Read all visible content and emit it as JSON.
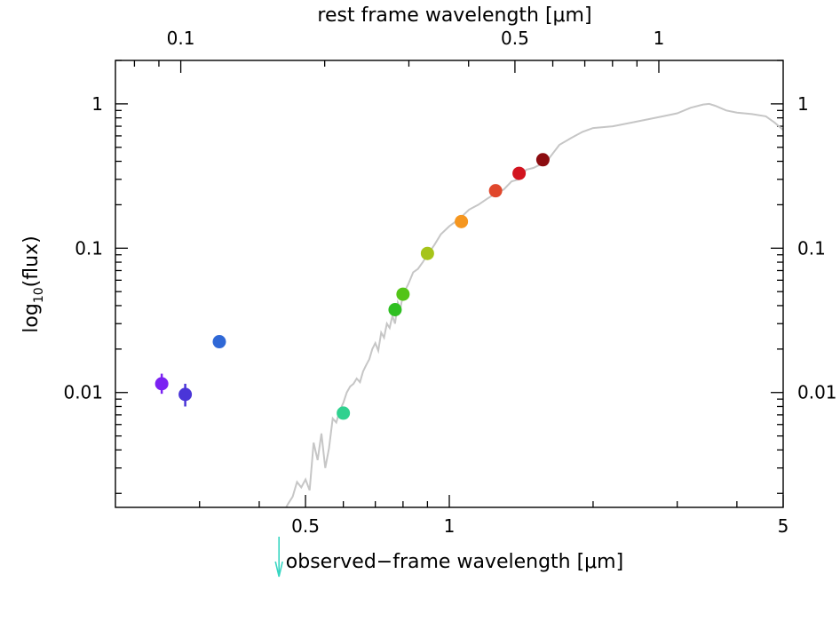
{
  "chart_data": {
    "type": "scatter",
    "xlabel_bottom": "observed−frame wavelength [μm]",
    "xlabel_top": "rest frame wavelength [μm]",
    "ylabel": "log10(flux)",
    "ylabel_base": "log",
    "ylabel_sub": "10",
    "ylabel_rest": "(flux)",
    "x_scale": "log",
    "y_scale": "log",
    "xlim": [
      0.2,
      5
    ],
    "ylim": [
      0.0016,
      2.0
    ],
    "top_axis": {
      "xlim": [
        0.073,
        1.82
      ]
    },
    "x_ticks_labeled": [
      {
        "value": 0.5,
        "label": "0.5"
      },
      {
        "value": 1,
        "label": "1"
      },
      {
        "value": 5,
        "label": "5"
      }
    ],
    "x_ticks_minor": [
      0.3,
      0.4,
      0.6,
      0.7,
      0.8,
      0.9,
      2,
      3,
      4
    ],
    "top_ticks_labeled": [
      {
        "value": 0.1,
        "label": "0.1"
      },
      {
        "value": 0.5,
        "label": "0.5"
      },
      {
        "value": 1,
        "label": "1"
      }
    ],
    "top_ticks_minor": [
      0.08,
      0.09,
      0.2,
      0.3,
      0.4,
      0.6,
      0.7,
      0.8,
      0.9
    ],
    "y_ticks_labeled": [
      {
        "value": 0.01,
        "label": "0.01"
      },
      {
        "value": 0.1,
        "label": "0.1"
      },
      {
        "value": 1,
        "label": "1"
      }
    ],
    "y_ticks_minor": [
      0.002,
      0.003,
      0.004,
      0.005,
      0.006,
      0.007,
      0.008,
      0.009,
      0.02,
      0.03,
      0.04,
      0.05,
      0.06,
      0.07,
      0.08,
      0.09,
      0.2,
      0.3,
      0.4,
      0.5,
      0.6,
      0.7,
      0.8,
      0.9,
      2
    ],
    "points": [
      {
        "x": 0.25,
        "y": 0.0115,
        "color": "#7b22f2",
        "err": [
          0.0098,
          0.0135
        ]
      },
      {
        "x": 0.28,
        "y": 0.0097,
        "color": "#4a35d8",
        "err": [
          0.008,
          0.0115
        ]
      },
      {
        "x": 0.33,
        "y": 0.0225,
        "color": "#2f68d6"
      },
      {
        "x": 0.6,
        "y": 0.0072,
        "color": "#2fd18f"
      },
      {
        "x": 0.77,
        "y": 0.0375,
        "color": "#2fbf22"
      },
      {
        "x": 0.8,
        "y": 0.048,
        "color": "#53c417"
      },
      {
        "x": 0.9,
        "y": 0.092,
        "color": "#a6c41a"
      },
      {
        "x": 1.06,
        "y": 0.153,
        "color": "#f5961f"
      },
      {
        "x": 1.25,
        "y": 0.25,
        "color": "#e0472c"
      },
      {
        "x": 1.4,
        "y": 0.33,
        "color": "#d2141f"
      },
      {
        "x": 1.57,
        "y": 0.41,
        "color": "#8c0c10"
      }
    ],
    "upper_limit": {
      "x": 0.44,
      "color": "#38d6c2"
    },
    "model_curve": {
      "color": "#c6c6c6",
      "x": [
        0.44,
        0.46,
        0.47,
        0.48,
        0.49,
        0.5,
        0.51,
        0.52,
        0.53,
        0.54,
        0.55,
        0.56,
        0.57,
        0.58,
        0.59,
        0.6,
        0.61,
        0.62,
        0.63,
        0.64,
        0.65,
        0.66,
        0.67,
        0.68,
        0.69,
        0.7,
        0.71,
        0.72,
        0.73,
        0.74,
        0.75,
        0.76,
        0.77,
        0.78,
        0.79,
        0.8,
        0.82,
        0.84,
        0.86,
        0.88,
        0.9,
        0.93,
        0.96,
        1.0,
        1.05,
        1.1,
        1.15,
        1.2,
        1.25,
        1.3,
        1.35,
        1.4,
        1.45,
        1.5,
        1.6,
        1.7,
        1.8,
        1.9,
        2.0,
        2.2,
        2.4,
        2.6,
        2.8,
        3.0,
        3.2,
        3.4,
        3.5,
        3.6,
        3.8,
        4.0,
        4.3,
        4.6,
        4.8,
        5.0
      ],
      "y": [
        0.0013,
        0.0017,
        0.0019,
        0.0024,
        0.0022,
        0.0025,
        0.0021,
        0.0045,
        0.0034,
        0.0052,
        0.003,
        0.0041,
        0.0066,
        0.0062,
        0.0075,
        0.0085,
        0.01,
        0.011,
        0.0115,
        0.0125,
        0.0118,
        0.014,
        0.0155,
        0.017,
        0.02,
        0.022,
        0.0195,
        0.026,
        0.024,
        0.03,
        0.028,
        0.034,
        0.03,
        0.042,
        0.038,
        0.048,
        0.056,
        0.068,
        0.072,
        0.08,
        0.09,
        0.105,
        0.125,
        0.142,
        0.16,
        0.185,
        0.2,
        0.22,
        0.24,
        0.255,
        0.29,
        0.3,
        0.35,
        0.36,
        0.4,
        0.52,
        0.58,
        0.64,
        0.68,
        0.7,
        0.74,
        0.78,
        0.82,
        0.86,
        0.94,
        0.99,
        1.0,
        0.97,
        0.9,
        0.87,
        0.85,
        0.82,
        0.74,
        0.66
      ]
    }
  }
}
